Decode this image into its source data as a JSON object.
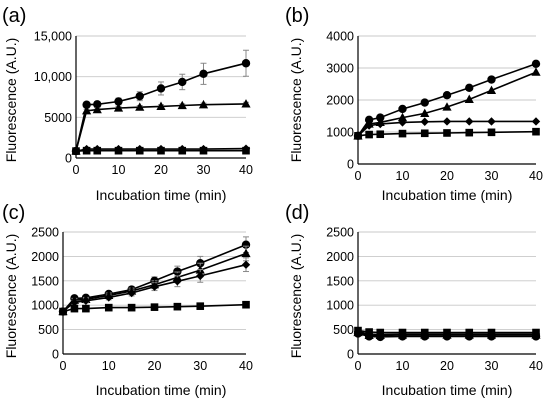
{
  "chart_data": [
    {
      "type": "line",
      "panel_label": "(a)",
      "xlabel": "Incubation time (min)",
      "ylabel": "Fluorescence (A.U.)",
      "xlim": [
        0,
        40
      ],
      "ylim": [
        0,
        15000
      ],
      "x_ticks": [
        "0",
        "10",
        "20",
        "30",
        "40"
      ],
      "y_ticks": [
        "0",
        "5000",
        "10,000",
        "15,000"
      ],
      "y_tick_values": [
        0,
        5000,
        10000,
        15000
      ],
      "grid": true,
      "series": [
        {
          "marker": "circle",
          "x": [
            0,
            2.5,
            5,
            10,
            15,
            20,
            25,
            30,
            40
          ],
          "y": [
            850,
            6550,
            6600,
            6950,
            7600,
            8550,
            9350,
            10350,
            11650
          ],
          "err": [
            0,
            300,
            350,
            400,
            550,
            800,
            950,
            1300,
            1600
          ]
        },
        {
          "marker": "triangle",
          "x": [
            0,
            2.5,
            5,
            10,
            15,
            20,
            25,
            30,
            40
          ],
          "y": [
            850,
            5800,
            5950,
            6150,
            6250,
            6350,
            6450,
            6550,
            6650
          ],
          "err": [
            0,
            200,
            200,
            200,
            200,
            200,
            200,
            200,
            200
          ]
        },
        {
          "marker": "diamond",
          "x": [
            0,
            2.5,
            5,
            10,
            15,
            20,
            25,
            30,
            40
          ],
          "y": [
            850,
            1100,
            1100,
            1100,
            1100,
            1100,
            1100,
            1100,
            1150
          ],
          "err": [
            0,
            0,
            0,
            0,
            0,
            0,
            0,
            0,
            0
          ]
        },
        {
          "marker": "square",
          "x": [
            0,
            2.5,
            5,
            10,
            15,
            20,
            25,
            30,
            40
          ],
          "y": [
            850,
            900,
            900,
            900,
            900,
            900,
            900,
            900,
            900
          ],
          "err": [
            0,
            0,
            0,
            0,
            0,
            0,
            0,
            0,
            0
          ]
        }
      ]
    },
    {
      "type": "line",
      "panel_label": "(b)",
      "xlabel": "Incubation time (min)",
      "ylabel": "Fluorescence (A.U.)",
      "xlim": [
        0,
        40
      ],
      "ylim": [
        0,
        4000
      ],
      "x_ticks": [
        "0",
        "10",
        "20",
        "30",
        "40"
      ],
      "y_ticks": [
        "0",
        "1000",
        "2000",
        "3000",
        "4000"
      ],
      "y_tick_values": [
        0,
        1000,
        2000,
        3000,
        4000
      ],
      "grid": true,
      "series": [
        {
          "marker": "circle",
          "x": [
            0,
            2.5,
            5,
            10,
            15,
            20,
            25,
            30,
            40
          ],
          "y": [
            880,
            1380,
            1450,
            1720,
            1920,
            2150,
            2380,
            2640,
            3130
          ],
          "err": [
            0,
            0,
            0,
            0,
            0,
            0,
            0,
            0,
            0
          ]
        },
        {
          "marker": "triangle",
          "x": [
            0,
            2.5,
            5,
            10,
            15,
            20,
            25,
            30,
            40
          ],
          "y": [
            880,
            1250,
            1300,
            1450,
            1580,
            1780,
            2020,
            2300,
            2870
          ],
          "err": [
            0,
            0,
            0,
            0,
            0,
            0,
            0,
            0,
            0
          ]
        },
        {
          "marker": "diamond",
          "x": [
            0,
            2.5,
            5,
            10,
            15,
            20,
            25,
            30,
            40
          ],
          "y": [
            880,
            1200,
            1250,
            1300,
            1320,
            1330,
            1330,
            1330,
            1330
          ],
          "err": [
            0,
            0,
            0,
            0,
            0,
            0,
            0,
            0,
            0
          ]
        },
        {
          "marker": "square",
          "x": [
            0,
            2.5,
            5,
            10,
            15,
            20,
            25,
            30,
            40
          ],
          "y": [
            880,
            920,
            930,
            950,
            960,
            970,
            980,
            990,
            1010
          ],
          "err": [
            0,
            0,
            0,
            0,
            0,
            0,
            0,
            0,
            0
          ]
        }
      ]
    },
    {
      "type": "line",
      "panel_label": "(c)",
      "xlabel": "Incubation time (min)",
      "ylabel": "Fluorescence (A.U.)",
      "xlim": [
        0,
        40
      ],
      "ylim": [
        0,
        2500
      ],
      "x_ticks": [
        "0",
        "10",
        "20",
        "30",
        "40"
      ],
      "y_ticks": [
        "0",
        "500",
        "1000",
        "1500",
        "2000",
        "2500"
      ],
      "y_tick_values": [
        0,
        500,
        1000,
        1500,
        2000,
        2500
      ],
      "grid": true,
      "series": [
        {
          "marker": "circle",
          "x": [
            0,
            2.5,
            5,
            10,
            15,
            20,
            25,
            30,
            40
          ],
          "y": [
            870,
            1140,
            1150,
            1230,
            1320,
            1500,
            1690,
            1860,
            2240
          ],
          "err": [
            0,
            40,
            40,
            50,
            60,
            80,
            110,
            140,
            160
          ]
        },
        {
          "marker": "triangle",
          "x": [
            0,
            2.5,
            5,
            10,
            15,
            20,
            25,
            30,
            40
          ],
          "y": [
            870,
            1100,
            1120,
            1200,
            1290,
            1420,
            1570,
            1720,
            2060
          ],
          "err": [
            0,
            40,
            40,
            50,
            60,
            80,
            110,
            140,
            150
          ]
        },
        {
          "marker": "diamond",
          "x": [
            0,
            2.5,
            5,
            10,
            15,
            20,
            25,
            30,
            40
          ],
          "y": [
            870,
            1060,
            1090,
            1160,
            1250,
            1380,
            1490,
            1600,
            1830
          ],
          "err": [
            0,
            40,
            40,
            50,
            60,
            80,
            110,
            130,
            140
          ]
        },
        {
          "marker": "square",
          "x": [
            0,
            2.5,
            5,
            10,
            15,
            20,
            25,
            30,
            40
          ],
          "y": [
            870,
            930,
            930,
            950,
            950,
            960,
            970,
            980,
            1010
          ],
          "err": [
            0,
            0,
            0,
            0,
            0,
            0,
            0,
            0,
            0
          ]
        }
      ]
    },
    {
      "type": "line",
      "panel_label": "(d)",
      "xlabel": "Incubation time (min)",
      "ylabel": "Fluorescence (A.U.)",
      "xlim": [
        0,
        40
      ],
      "ylim": [
        0,
        2500
      ],
      "x_ticks": [
        "0",
        "10",
        "20",
        "30",
        "40"
      ],
      "y_ticks": [
        "0",
        "500",
        "1000",
        "1500",
        "2000",
        "2500"
      ],
      "y_tick_values": [
        0,
        500,
        1000,
        1500,
        2000,
        2500
      ],
      "grid": true,
      "series": [
        {
          "marker": "circle",
          "x": [
            0,
            2.5,
            5,
            10,
            15,
            20,
            25,
            30,
            40
          ],
          "y": [
            420,
            360,
            350,
            360,
            360,
            360,
            360,
            360,
            360
          ],
          "err": [
            0,
            0,
            0,
            0,
            0,
            0,
            0,
            0,
            0
          ]
        },
        {
          "marker": "triangle",
          "x": [
            0,
            2.5,
            5,
            10,
            15,
            20,
            25,
            30,
            40
          ],
          "y": [
            440,
            380,
            380,
            390,
            390,
            390,
            390,
            390,
            390
          ],
          "err": [
            0,
            0,
            0,
            0,
            0,
            0,
            0,
            0,
            0
          ]
        },
        {
          "marker": "diamond",
          "x": [
            0,
            2.5,
            5,
            10,
            15,
            20,
            25,
            30,
            40
          ],
          "y": [
            460,
            410,
            400,
            410,
            410,
            410,
            410,
            410,
            410
          ],
          "err": [
            0,
            0,
            0,
            0,
            0,
            0,
            0,
            0,
            0
          ]
        },
        {
          "marker": "square",
          "x": [
            0,
            2.5,
            5,
            10,
            15,
            20,
            25,
            30,
            40
          ],
          "y": [
            480,
            450,
            440,
            440,
            440,
            440,
            440,
            440,
            440
          ],
          "err": [
            0,
            0,
            0,
            0,
            0,
            0,
            0,
            0,
            0
          ]
        }
      ]
    }
  ]
}
